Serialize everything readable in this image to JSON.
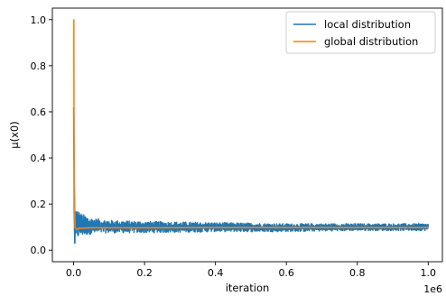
{
  "chart_data": {
    "type": "line",
    "xlabel": "iteration",
    "ylabel": "μ(x0)",
    "x_scale_label": "1e6",
    "xlim": [
      -60000,
      1040000
    ],
    "ylim": [
      -0.05,
      1.05
    ],
    "x_ticks": [
      0,
      200000,
      400000,
      600000,
      800000,
      1000000
    ],
    "x_tick_labels": [
      "0.0",
      "0.2",
      "0.4",
      "0.6",
      "0.8",
      "1.0"
    ],
    "y_ticks": [
      0.0,
      0.2,
      0.4,
      0.6,
      0.8,
      1.0
    ],
    "y_tick_labels": [
      "0.0",
      "0.2",
      "0.4",
      "0.6",
      "0.8",
      "1.0"
    ],
    "grid": false,
    "legend_position": "top-right",
    "series": [
      {
        "name": "local distribution",
        "color": "#1f77b4",
        "description_points": {
          "x": [
            0,
            1500,
            3000,
            6000,
            10000,
            20000,
            50000,
            100000,
            200000,
            400000,
            600000,
            800000,
            1000000
          ],
          "y": [
            0.62,
            0.18,
            0.03,
            0.14,
            0.1,
            0.11,
            0.1,
            0.1,
            0.1,
            0.1,
            0.1,
            0.1,
            0.1
          ]
        },
        "envelope": {
          "x": [
            3000,
            10000,
            20000,
            50000,
            100000,
            200000,
            400000,
            600000,
            800000,
            1000000
          ],
          "upper": [
            0.2,
            0.18,
            0.16,
            0.14,
            0.13,
            0.125,
            0.12,
            0.115,
            0.115,
            0.115
          ],
          "lower": [
            0.0,
            0.05,
            0.06,
            0.07,
            0.075,
            0.075,
            0.08,
            0.08,
            0.085,
            0.085
          ]
        }
      },
      {
        "name": "global distribution",
        "color": "#ff7f0e",
        "x": [
          0,
          500,
          1000,
          2000,
          4000,
          8000,
          15000,
          50000,
          200000,
          400000,
          600000,
          800000,
          1000000
        ],
        "y": [
          1.0,
          1.0,
          0.6,
          0.3,
          0.1,
          0.09,
          0.095,
          0.097,
          0.097,
          0.098,
          0.098,
          0.098,
          0.098
        ]
      }
    ]
  }
}
